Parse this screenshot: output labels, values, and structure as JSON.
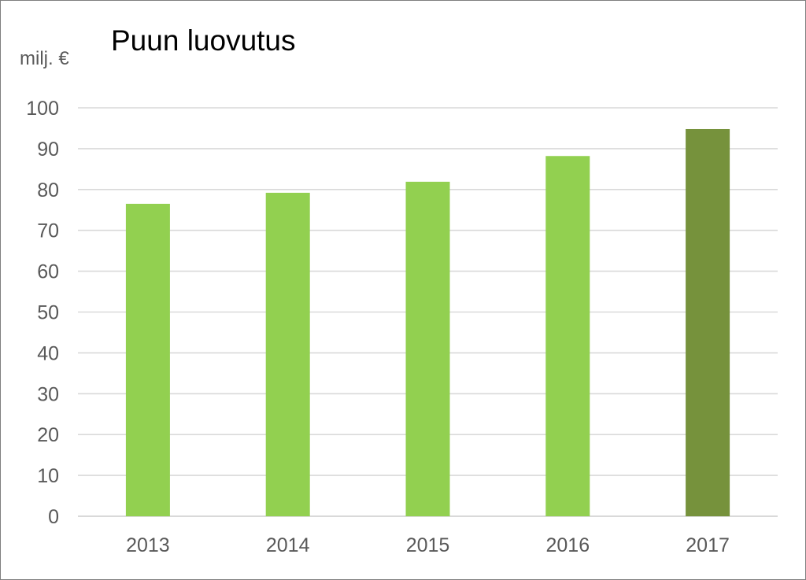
{
  "chart_data": {
    "type": "bar",
    "title": "Puun luovutus",
    "unit_label": "milj. €",
    "categories": [
      "2013",
      "2014",
      "2015",
      "2016",
      "2017"
    ],
    "values": [
      76.5,
      79.2,
      81.9,
      88.2,
      94.8
    ],
    "ylim": [
      0,
      100
    ],
    "yticks": [
      0,
      10,
      20,
      30,
      40,
      50,
      60,
      70,
      80,
      90,
      100
    ],
    "grid": true,
    "legend": "none",
    "colors": {
      "bar": "#92d050",
      "highlight": "#76923c",
      "grid": "#d9d9d9",
      "axis_text": "#595959"
    },
    "highlight_index": 4
  }
}
